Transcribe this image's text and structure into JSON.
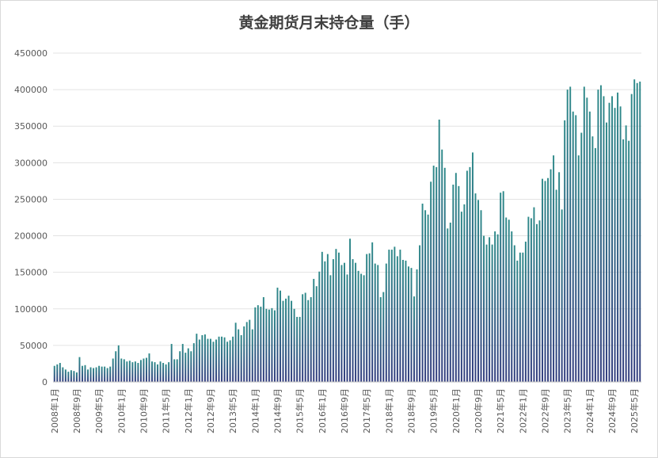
{
  "chart_data": {
    "type": "bar",
    "title": "黄金期货月末持仓量（手）",
    "xlabel": "",
    "ylabel": "",
    "ylim": [
      0,
      450000
    ],
    "yticks": [
      "0",
      "50000",
      "100000",
      "150000",
      "200000",
      "250000",
      "300000",
      "350000",
      "400000",
      "450000"
    ],
    "grid": true,
    "legend": "none",
    "bar_color_top": "#2e8a8a",
    "bar_color_bottom": "#2f3a7c",
    "tick_labels": [
      "2008年1月",
      "2008年9月",
      "2009年5月",
      "2010年1月",
      "2010年9月",
      "2011年5月",
      "2012年1月",
      "2012年9月",
      "2013年5月",
      "2014年1月",
      "2014年9月",
      "2015年5月",
      "2016年1月",
      "2016年9月",
      "2017年5月",
      "2018年1月",
      "2018年9月",
      "2019年5月",
      "2020年1月",
      "2020年9月",
      "2021年5月",
      "2022年1月",
      "2022年9月",
      "2023年5月",
      "2024年1月",
      "2024年9月",
      "2025年5月"
    ],
    "values": [
      22000,
      24000,
      26000,
      20000,
      17000,
      14000,
      16000,
      15000,
      13000,
      34000,
      22000,
      23000,
      17000,
      20000,
      19000,
      20000,
      22000,
      21000,
      21000,
      19000,
      21000,
      32000,
      42000,
      50000,
      32000,
      31000,
      28000,
      29000,
      27000,
      28000,
      26000,
      30000,
      32000,
      33000,
      39000,
      28000,
      27000,
      24000,
      28000,
      26000,
      24000,
      27000,
      52000,
      31000,
      31000,
      42000,
      52000,
      40000,
      46000,
      42000,
      53000,
      66000,
      58000,
      64000,
      65000,
      59000,
      59000,
      55000,
      58000,
      62000,
      62000,
      61000,
      55000,
      57000,
      62000,
      81000,
      72000,
      64000,
      76000,
      82000,
      85000,
      72000,
      102000,
      105000,
      103000,
      116000,
      100000,
      99000,
      101000,
      98000,
      129000,
      125000,
      111000,
      114000,
      118000,
      111000,
      100000,
      89000,
      89000,
      120000,
      122000,
      112000,
      116000,
      141000,
      131000,
      151000,
      178000,
      165000,
      175000,
      146000,
      168000,
      182000,
      177000,
      160000,
      163000,
      147000,
      196000,
      168000,
      163000,
      152000,
      148000,
      146000,
      175000,
      176000,
      191000,
      162000,
      160000,
      116000,
      123000,
      162000,
      181000,
      181000,
      185000,
      172000,
      181000,
      167000,
      166000,
      158000,
      156000,
      117000,
      154000,
      187000,
      244000,
      235000,
      229000,
      274000,
      296000,
      294000,
      359000,
      318000,
      293000,
      210000,
      218000,
      270000,
      286000,
      268000,
      233000,
      243000,
      289000,
      294000,
      314000,
      258000,
      249000,
      235000,
      200000,
      188000,
      198000,
      188000,
      206000,
      202000,
      259000,
      261000,
      225000,
      222000,
      206000,
      187000,
      166000,
      177000,
      177000,
      192000,
      226000,
      224000,
      239000,
      216000,
      221000,
      278000,
      275000,
      279000,
      291000,
      310000,
      263000,
      287000,
      236000,
      358000,
      400000,
      404000,
      370000,
      365000,
      310000,
      341000,
      404000,
      389000,
      370000,
      336000,
      320000,
      400000,
      406000,
      391000,
      355000,
      382000,
      391000,
      375000,
      396000,
      377000,
      332000,
      351000,
      330000,
      394000,
      414000,
      409000,
      411000
    ]
  }
}
